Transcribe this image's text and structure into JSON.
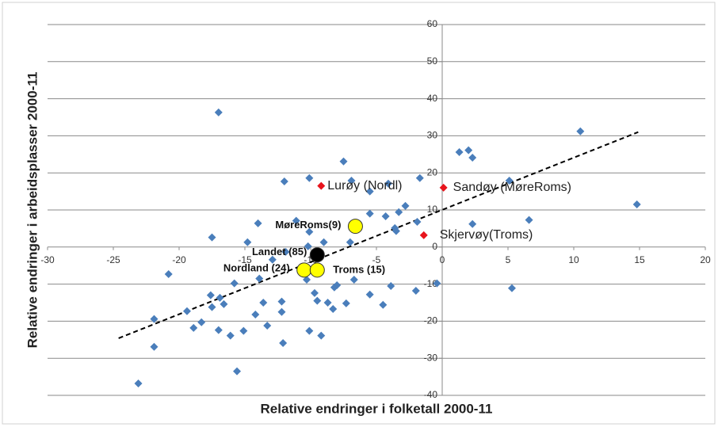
{
  "chart_data": {
    "type": "scatter",
    "x_label": "Relative endringer i folketall 2000-11",
    "y_label": "Relative endringer i arbeidsplasser 2000-11",
    "xlim": [
      -30,
      20
    ],
    "ylim": [
      -40,
      60
    ],
    "xticks": [
      -30,
      -25,
      -20,
      -15,
      -10,
      -5,
      0,
      5,
      10,
      15,
      20
    ],
    "yticks": [
      -40,
      -30,
      -20,
      -10,
      0,
      10,
      20,
      30,
      40,
      50,
      60
    ],
    "grid": true,
    "series": [
      {
        "color": "#4a7ebb",
        "marker": "diamond",
        "x": [
          -17.0,
          10.5,
          14.8,
          1.3,
          2.0,
          2.3,
          5.1,
          6.6,
          2.3,
          5.3,
          -0.4,
          -2.0,
          -7.5,
          -10.1,
          -12.0,
          -6.9,
          -5.5,
          -4.1,
          -1.7,
          -2.8,
          -3.3,
          -4.3,
          -5.5,
          -1.9,
          -3.6,
          -3.5,
          -11.1,
          -14.0,
          -10.1,
          -9.0,
          -7.0,
          -14.8,
          -17.5,
          -11.9,
          -10.2,
          -12.9,
          -13.9,
          -15.8,
          -20.8,
          -6.7,
          -8.0,
          -8.2,
          -5.5,
          -3.9,
          -9.7,
          -9.5,
          -8.7,
          -8.3,
          -7.3,
          -4.5,
          -12.2,
          -13.6,
          -12.2,
          -14.2,
          -13.3,
          -10.1,
          -9.2,
          -15.1,
          -16.1,
          -17.0,
          -12.1,
          -17.6,
          -16.9,
          -17.5,
          -16.6,
          -19.4,
          -18.3,
          -18.9,
          -21.9,
          -21.9,
          -15.6,
          -23.1,
          -10.3
        ],
        "values": [
          36.3,
          31.2,
          11.5,
          25.6,
          26.1,
          24.1,
          17.9,
          7.3,
          6.2,
          -11.1,
          -9.8,
          -11.8,
          23.1,
          18.6,
          17.7,
          17.9,
          15.0,
          17.1,
          18.6,
          11.1,
          9.4,
          8.3,
          9.0,
          6.8,
          5.1,
          4.3,
          7.1,
          6.4,
          4.1,
          1.3,
          1.3,
          1.3,
          2.6,
          -1.3,
          0.2,
          -3.4,
          -8.5,
          -9.8,
          -7.3,
          -8.8,
          -10.3,
          -10.9,
          -12.8,
          -10.5,
          -12.4,
          -14.5,
          -15.0,
          -16.7,
          -15.2,
          -15.6,
          -14.7,
          -15.0,
          -17.5,
          -18.2,
          -21.2,
          -22.6,
          -23.9,
          -22.6,
          -23.9,
          -22.4,
          -25.9,
          -13.0,
          -13.7,
          -16.2,
          -15.4,
          -17.3,
          -20.3,
          -21.8,
          -19.4,
          -26.9,
          -33.5,
          -36.8,
          -8.8
        ]
      },
      {
        "color": "#e8141c",
        "marker": "diamond",
        "x": [
          -9.2,
          0.1,
          -1.4
        ],
        "values": [
          16.5,
          16.0,
          3.2
        ],
        "labels": [
          "Lurøy (Nordl)",
          "Sandøy (MøreRoms)",
          "Skjervøy(Troms)"
        ]
      },
      {
        "color": "#ffff00",
        "marker": "circle",
        "x": [
          -6.6,
          -10.5,
          -9.5
        ],
        "values": [
          5.6,
          -6.2,
          -6.2
        ],
        "labels": [
          "MøreRoms(9)",
          "Nordland  (24)",
          "Troms (15)"
        ]
      },
      {
        "color": "#000000",
        "marker": "circle",
        "x": [
          -9.5
        ],
        "values": [
          -2.1
        ],
        "labels": [
          "Landet (85)"
        ]
      }
    ],
    "trendline": {
      "x": [
        -24.6,
        14.9
      ],
      "values": [
        -24.6,
        31.0
      ]
    }
  }
}
